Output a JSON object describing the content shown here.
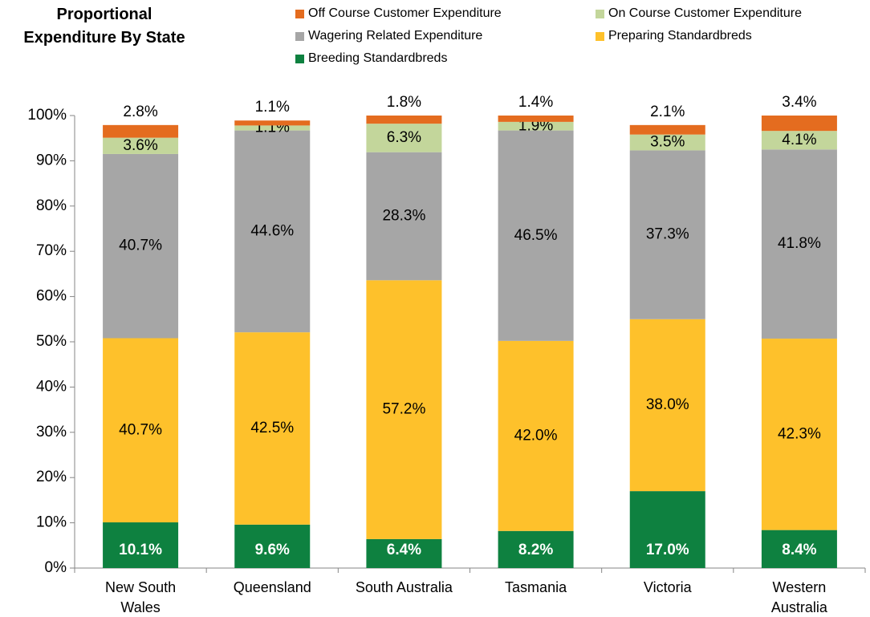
{
  "chart_data": {
    "type": "stacked_bar",
    "title": "Proportional Expenditure By State",
    "categories": [
      "New South Wales",
      "Queensland",
      "South Australia",
      "Tasmania",
      "Victoria",
      "Western Australia"
    ],
    "series": [
      {
        "name": "Breeding Standardbreds",
        "color": "#0e8140",
        "values": [
          10.1,
          9.6,
          6.4,
          8.2,
          17.0,
          8.4
        ],
        "value_labels": [
          "10.1%",
          "9.6%",
          "6.4%",
          "8.2%",
          "17.0%",
          "8.4%"
        ]
      },
      {
        "name": "Preparing Standardbreds",
        "color": "#fec12b",
        "values": [
          40.7,
          42.5,
          57.2,
          42.0,
          38.0,
          42.3
        ],
        "value_labels": [
          "40.7%",
          "42.5%",
          "57.2%",
          "42.0%",
          "38.0%",
          "42.3%"
        ]
      },
      {
        "name": "Wagering Related Expenditure",
        "color": "#a6a6a6",
        "values": [
          40.7,
          44.6,
          28.3,
          46.5,
          37.3,
          41.8
        ],
        "value_labels": [
          "40.7%",
          "44.6%",
          "28.3%",
          "46.5%",
          "37.3%",
          "41.8%"
        ]
      },
      {
        "name": "On Course Customer Expenditure",
        "color": "#c3d69b",
        "values": [
          3.6,
          1.1,
          6.3,
          1.9,
          3.5,
          4.1
        ],
        "value_labels": [
          "3.6%",
          "1.1%",
          "6.3%",
          "1.9%",
          "3.5%",
          "4.1%"
        ]
      },
      {
        "name": "Off Course Customer Expenditure",
        "color": "#e46c1f",
        "values": [
          2.8,
          1.1,
          1.8,
          1.4,
          2.1,
          3.4
        ],
        "value_labels": [
          "2.8%",
          "1.1%",
          "1.8%",
          "1.4%",
          "2.1%",
          "3.4%"
        ]
      }
    ],
    "ylim": [
      0,
      100
    ],
    "yticks": [
      {
        "value": 0,
        "label": "0%"
      },
      {
        "value": 10,
        "label": "10%"
      },
      {
        "value": 20,
        "label": "20%"
      },
      {
        "value": 30,
        "label": "30%"
      },
      {
        "value": 40,
        "label": "40%"
      },
      {
        "value": 50,
        "label": "50%"
      },
      {
        "value": 60,
        "label": "60%"
      },
      {
        "value": 70,
        "label": "70%"
      },
      {
        "value": 80,
        "label": "80%"
      },
      {
        "value": 90,
        "label": "90%"
      },
      {
        "value": 100,
        "label": "100%"
      }
    ],
    "grid": false
  }
}
